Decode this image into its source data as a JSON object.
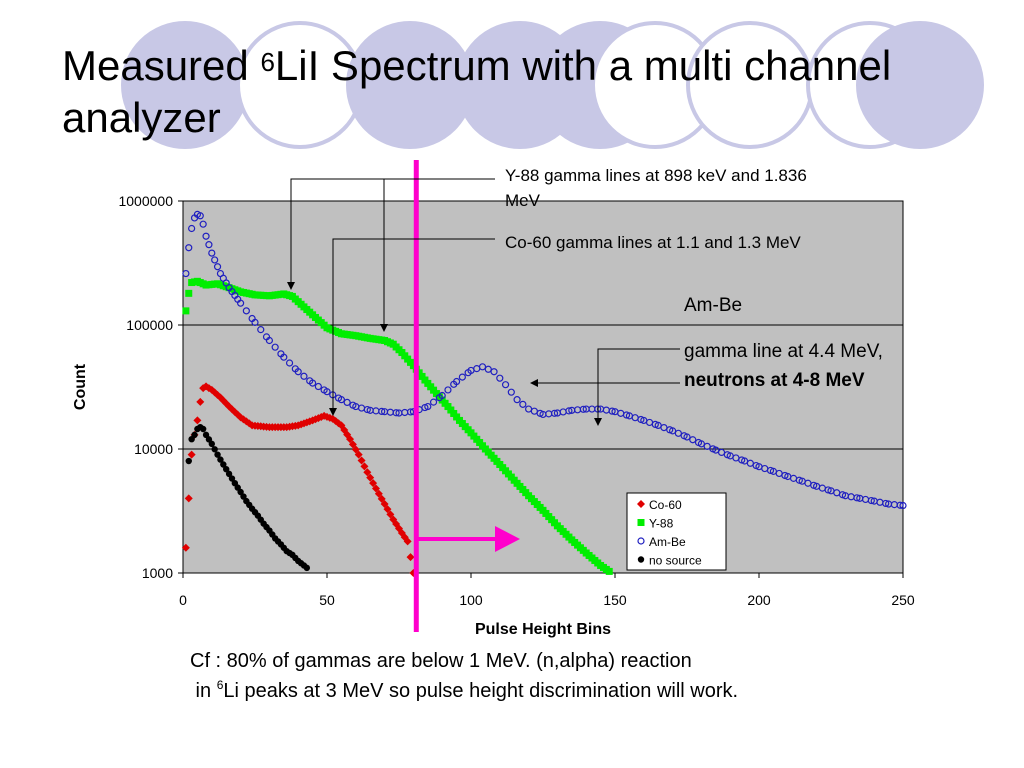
{
  "slide": {
    "title_prefix": "Measured ",
    "title_sup": "6",
    "title_rest": "LiI Spectrum with a multi channel analyzer",
    "caption_line1": "Cf : 80% of gammas are below 1 MeV.  (n,alpha) reaction",
    "caption_line2_prefix": " in ",
    "caption_line2_sup": "6",
    "caption_line2_rest": "Li peaks at 3 MeV so pulse height discrimination will work.",
    "deco_colors": [
      "#c8c8e6",
      "#ffffff"
    ]
  },
  "chart_data": {
    "type": "scatter",
    "xlabel": "Pulse Height Bins",
    "ylabel": "Count",
    "xlim": [
      0,
      250
    ],
    "ylim": [
      1000,
      1000000
    ],
    "yscale": "log",
    "xticks": [
      "0",
      "50",
      "100",
      "150",
      "200",
      "250"
    ],
    "yticks": [
      "1000",
      "10000",
      "100000",
      "1000000"
    ],
    "grid": true,
    "plot_background": "#c0c0c0",
    "legend_position": "bottom-right",
    "series": [
      {
        "name": "Co-60",
        "marker": "diamond",
        "color": "#e00000",
        "points": [
          [
            1,
            1600
          ],
          [
            2,
            4000
          ],
          [
            3,
            9000
          ],
          [
            4,
            13000
          ],
          [
            5,
            17000
          ],
          [
            6,
            24000
          ],
          [
            7,
            31000
          ],
          [
            8,
            32000
          ],
          [
            10,
            30000
          ],
          [
            13,
            26000
          ],
          [
            16,
            22000
          ],
          [
            20,
            18000
          ],
          [
            24,
            15500
          ],
          [
            30,
            15000
          ],
          [
            36,
            15000
          ],
          [
            40,
            15500
          ],
          [
            45,
            17000
          ],
          [
            49,
            18500
          ],
          [
            52,
            17500
          ],
          [
            55,
            15500
          ],
          [
            58,
            12000
          ],
          [
            61,
            9000
          ],
          [
            64,
            6500
          ],
          [
            67,
            4800
          ],
          [
            70,
            3600
          ],
          [
            73,
            2700
          ],
          [
            76,
            2100
          ],
          [
            78,
            1800
          ],
          [
            80,
            1000
          ]
        ]
      },
      {
        "name": "Y-88",
        "marker": "square",
        "color": "#00ee00",
        "points": [
          [
            1,
            130000
          ],
          [
            2,
            180000
          ],
          [
            3,
            220000
          ],
          [
            5,
            225000
          ],
          [
            8,
            210000
          ],
          [
            12,
            215000
          ],
          [
            16,
            200000
          ],
          [
            20,
            185000
          ],
          [
            25,
            175000
          ],
          [
            30,
            172000
          ],
          [
            35,
            178000
          ],
          [
            38,
            170000
          ],
          [
            42,
            140000
          ],
          [
            46,
            115000
          ],
          [
            50,
            95000
          ],
          [
            55,
            85000
          ],
          [
            60,
            82000
          ],
          [
            65,
            78000
          ],
          [
            70,
            75000
          ],
          [
            73,
            70000
          ],
          [
            76,
            60000
          ],
          [
            80,
            47000
          ],
          [
            84,
            36000
          ],
          [
            88,
            28000
          ],
          [
            92,
            22000
          ],
          [
            96,
            17000
          ],
          [
            100,
            13500
          ],
          [
            105,
            10000
          ],
          [
            110,
            7500
          ],
          [
            115,
            5600
          ],
          [
            120,
            4200
          ],
          [
            125,
            3200
          ],
          [
            130,
            2400
          ],
          [
            135,
            1850
          ],
          [
            140,
            1450
          ],
          [
            145,
            1150
          ],
          [
            148,
            1030
          ]
        ]
      },
      {
        "name": "Am-Be",
        "marker": "circle-open",
        "color": "#2020c0",
        "points": [
          [
            1,
            260000
          ],
          [
            2,
            420000
          ],
          [
            3,
            600000
          ],
          [
            4,
            730000
          ],
          [
            5,
            780000
          ],
          [
            6,
            760000
          ],
          [
            7,
            650000
          ],
          [
            8,
            520000
          ],
          [
            10,
            380000
          ],
          [
            13,
            260000
          ],
          [
            16,
            200000
          ],
          [
            20,
            150000
          ],
          [
            25,
            105000
          ],
          [
            30,
            75000
          ],
          [
            35,
            55000
          ],
          [
            40,
            42000
          ],
          [
            45,
            34000
          ],
          [
            50,
            29000
          ],
          [
            55,
            25000
          ],
          [
            60,
            22000
          ],
          [
            65,
            20500
          ],
          [
            70,
            20000
          ],
          [
            75,
            19500
          ],
          [
            80,
            20000
          ],
          [
            85,
            22000
          ],
          [
            90,
            27000
          ],
          [
            95,
            35000
          ],
          [
            100,
            43000
          ],
          [
            104,
            46000
          ],
          [
            108,
            42000
          ],
          [
            112,
            33000
          ],
          [
            116,
            25000
          ],
          [
            120,
            21000
          ],
          [
            125,
            19000
          ],
          [
            130,
            19500
          ],
          [
            135,
            20500
          ],
          [
            140,
            21000
          ],
          [
            145,
            21000
          ],
          [
            150,
            20000
          ],
          [
            155,
            18500
          ],
          [
            160,
            17000
          ],
          [
            165,
            15500
          ],
          [
            170,
            14000
          ],
          [
            175,
            12500
          ],
          [
            180,
            11000
          ],
          [
            185,
            9800
          ],
          [
            190,
            8800
          ],
          [
            195,
            8000
          ],
          [
            200,
            7200
          ],
          [
            205,
            6600
          ],
          [
            210,
            6000
          ],
          [
            215,
            5500
          ],
          [
            220,
            5000
          ],
          [
            225,
            4600
          ],
          [
            230,
            4200
          ],
          [
            235,
            4000
          ],
          [
            240,
            3800
          ],
          [
            245,
            3600
          ],
          [
            250,
            3500
          ]
        ]
      },
      {
        "name": "no source",
        "marker": "circle-filled",
        "color": "#000000",
        "points": [
          [
            2,
            8000
          ],
          [
            3,
            12000
          ],
          [
            4,
            13000
          ],
          [
            5,
            14500
          ],
          [
            6,
            15000
          ],
          [
            7,
            14500
          ],
          [
            8,
            13000
          ],
          [
            10,
            11000
          ],
          [
            12,
            9000
          ],
          [
            14,
            7500
          ],
          [
            16,
            6300
          ],
          [
            18,
            5300
          ],
          [
            20,
            4500
          ],
          [
            22,
            3800
          ],
          [
            24,
            3300
          ],
          [
            26,
            2900
          ],
          [
            28,
            2500
          ],
          [
            30,
            2200
          ],
          [
            32,
            1900
          ],
          [
            34,
            1700
          ],
          [
            36,
            1500
          ],
          [
            38,
            1400
          ],
          [
            40,
            1250
          ],
          [
            42,
            1150
          ],
          [
            43,
            1100
          ]
        ]
      }
    ],
    "annotations": [
      {
        "id": "y88",
        "text": "Y-88 gamma lines at 898 keV and 1.836 MeV"
      },
      {
        "id": "co60",
        "text": "Co-60 gamma lines at 1.1 and 1.3 MeV"
      },
      {
        "id": "ambe",
        "text": "Am-Be"
      },
      {
        "id": "gamma44",
        "text": "gamma line at 4.4 MeV,"
      },
      {
        "id": "neutrons",
        "text": "neutrons at 4-8 MeV"
      }
    ],
    "threshold_line": {
      "x": 81,
      "color": "#ff00cc"
    }
  }
}
